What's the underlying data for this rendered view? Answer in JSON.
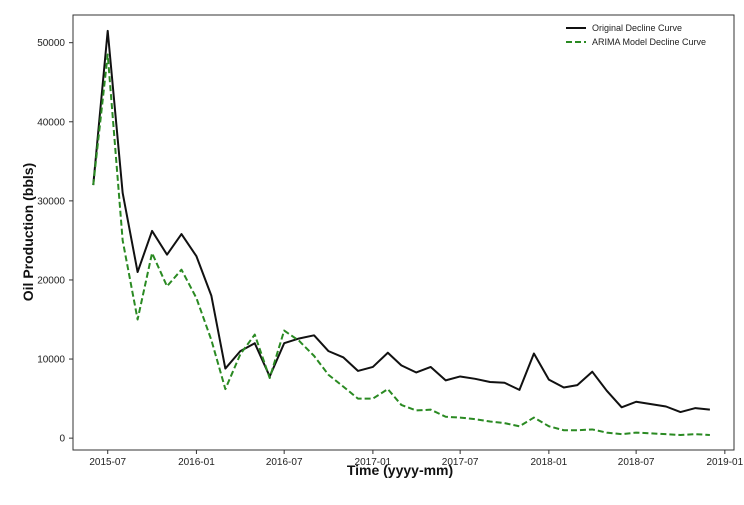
{
  "chart_data": {
    "type": "line",
    "title": "",
    "xlabel": "Time (yyyy-mm)",
    "ylabel": "Oil Production (bbls)",
    "x_type": "date",
    "x_ticks": [
      "2015-07",
      "2016-01",
      "2016-07",
      "2017-01",
      "2017-07",
      "2018-01",
      "2018-07",
      "2019-01"
    ],
    "y_ticks": [
      0,
      10000,
      20000,
      30000,
      40000,
      50000
    ],
    "ylim": [
      -1500,
      53500
    ],
    "xlim": [
      "2015-04-20",
      "2019-01-20"
    ],
    "grid": false,
    "legend": "top-right",
    "x": [
      "2015-06",
      "2015-07",
      "2015-08",
      "2015-09",
      "2015-10",
      "2015-11",
      "2015-12",
      "2016-01",
      "2016-02",
      "2016-03",
      "2016-04",
      "2016-05",
      "2016-06",
      "2016-07",
      "2016-08",
      "2016-09",
      "2016-10",
      "2016-11",
      "2016-12",
      "2017-01",
      "2017-02",
      "2017-03",
      "2017-04",
      "2017-05",
      "2017-06",
      "2017-07",
      "2017-08",
      "2017-09",
      "2017-10",
      "2017-11",
      "2017-12",
      "2018-01",
      "2018-02",
      "2018-03",
      "2018-04",
      "2018-05",
      "2018-06",
      "2018-07",
      "2018-08",
      "2018-09",
      "2018-10",
      "2018-11",
      "2018-12"
    ],
    "series": [
      {
        "name": "Original Decline Curve",
        "color": "#111111",
        "dash": "solid",
        "values": [
          32000,
          51500,
          31000,
          21000,
          26200,
          23200,
          25800,
          23000,
          18000,
          8800,
          11000,
          12000,
          7800,
          12000,
          12600,
          13000,
          11000,
          10200,
          8500,
          9000,
          10800,
          9200,
          8300,
          9000,
          7300,
          7800,
          7500,
          7100,
          7000,
          6100,
          10700,
          7400,
          6400,
          6700,
          8400,
          6000,
          3900,
          4600,
          4300,
          4000,
          3300,
          3800,
          3600
        ]
      },
      {
        "name": "ARIMA Model Decline Curve",
        "color": "#2a8a22",
        "dash": "dashed",
        "values": [
          32000,
          48500,
          25000,
          15000,
          23400,
          19200,
          21300,
          17700,
          12400,
          6200,
          10600,
          13100,
          7600,
          13600,
          12300,
          10400,
          8000,
          6500,
          5000,
          5000,
          6200,
          4200,
          3500,
          3600,
          2700,
          2600,
          2400,
          2100,
          1900,
          1500,
          2600,
          1500,
          1000,
          1000,
          1100,
          700,
          500,
          700,
          600,
          500,
          400,
          500,
          400
        ]
      }
    ]
  }
}
